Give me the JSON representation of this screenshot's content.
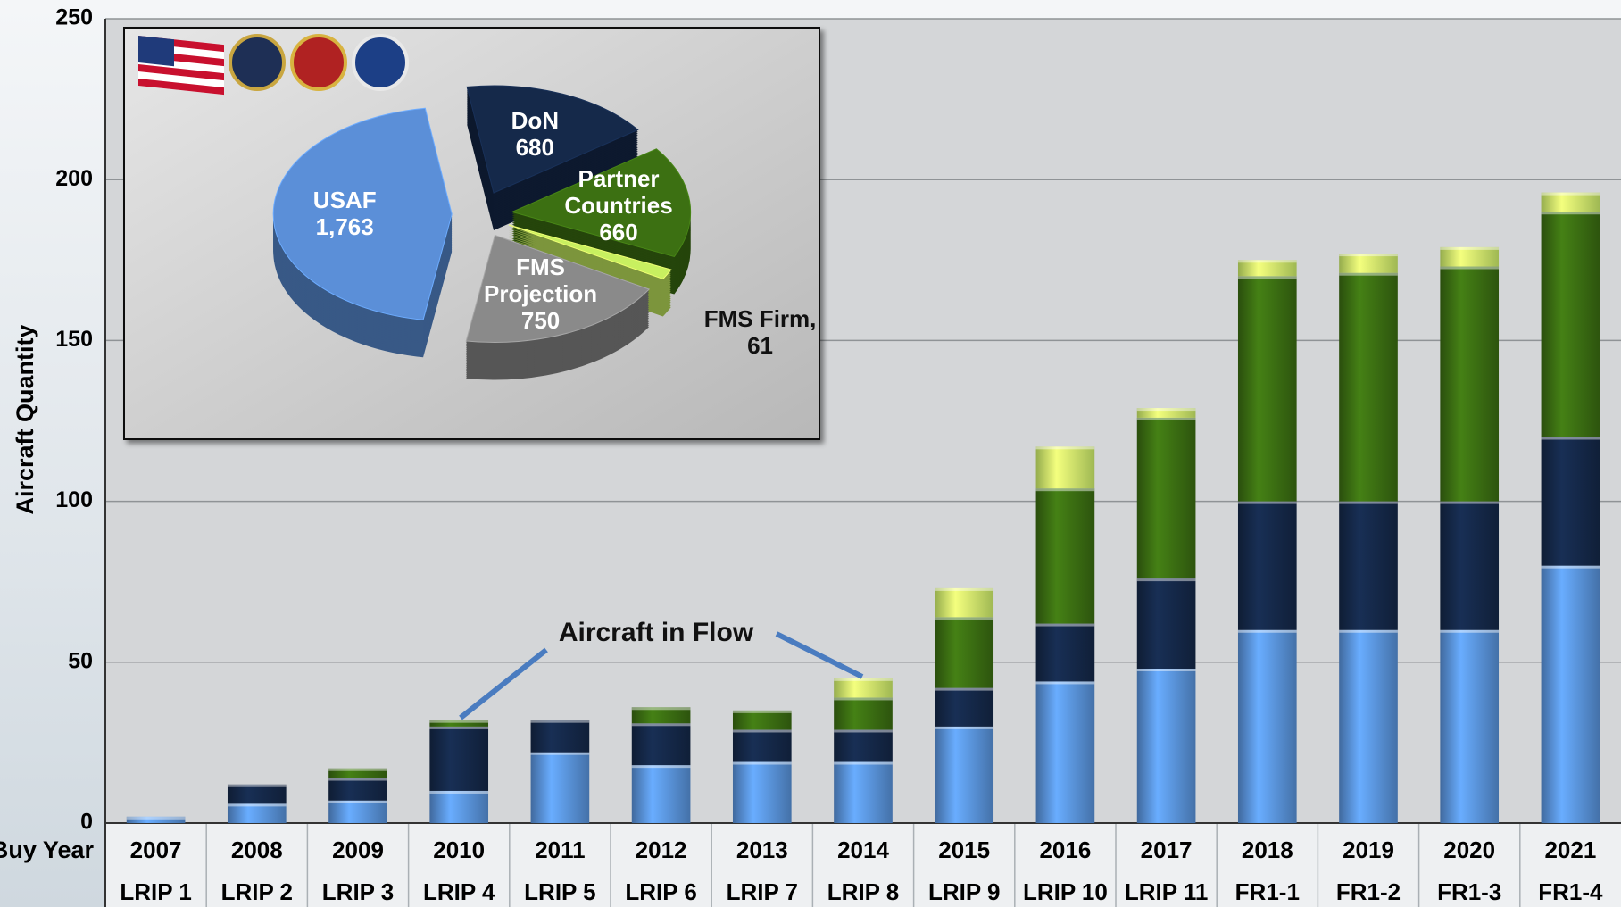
{
  "chart_data": [
    {
      "type": "stacked_bar",
      "y_label": "Aircraft Quantity",
      "x_label": "Buy Year",
      "categories": [
        "2007",
        "2008",
        "2009",
        "2010",
        "2011",
        "2012",
        "2013",
        "2014",
        "2015",
        "2016",
        "2017",
        "2018",
        "2019",
        "2020",
        "2021"
      ],
      "lots": [
        "LRIP 1",
        "LRIP 2",
        "LRIP 3",
        "LRIP 4",
        "LRIP 5",
        "LRIP 6",
        "LRIP 7",
        "LRIP 8",
        "LRIP 9",
        "LRIP 10",
        "LRIP 11",
        "FR1-1",
        "FR1-2",
        "FR1-3",
        "FR1-4"
      ],
      "series": [
        {
          "color": "#5b96e0",
          "values": [
            2,
            6,
            7,
            10,
            22,
            18,
            19,
            19,
            30,
            44,
            48,
            60,
            60,
            60,
            80
          ]
        },
        {
          "color": "#15294a",
          "values": [
            0,
            6,
            7,
            20,
            10,
            13,
            10,
            10,
            12,
            18,
            28,
            40,
            40,
            40,
            40
          ]
        },
        {
          "color": "#3c7012",
          "values": [
            0,
            0,
            3,
            2,
            0,
            5,
            6,
            10,
            22,
            42,
            50,
            70,
            71,
            73,
            70
          ]
        },
        {
          "color": "#d4f56e",
          "values": [
            0,
            0,
            0,
            0,
            0,
            0,
            0,
            6,
            9,
            13,
            3,
            5,
            6,
            6,
            6
          ]
        }
      ],
      "ylim": [
        0,
        250
      ],
      "yticks": [
        0,
        50,
        100,
        150,
        200,
        250
      ],
      "grid": true,
      "annotation": "Aircraft in Flow"
    },
    {
      "type": "pie",
      "categories": [
        "DoN",
        "Partner Countries",
        "FMS Firm,",
        "FMS Projection",
        "USAF"
      ],
      "values": [
        680,
        660,
        61,
        750,
        1763
      ],
      "value_labels": [
        "680",
        "660",
        "61",
        "750",
        "1,763"
      ],
      "colors": [
        "#15294a",
        "#3c7012",
        "#c8f060",
        "#8a8a8a",
        "#5b8fd8"
      ]
    }
  ]
}
